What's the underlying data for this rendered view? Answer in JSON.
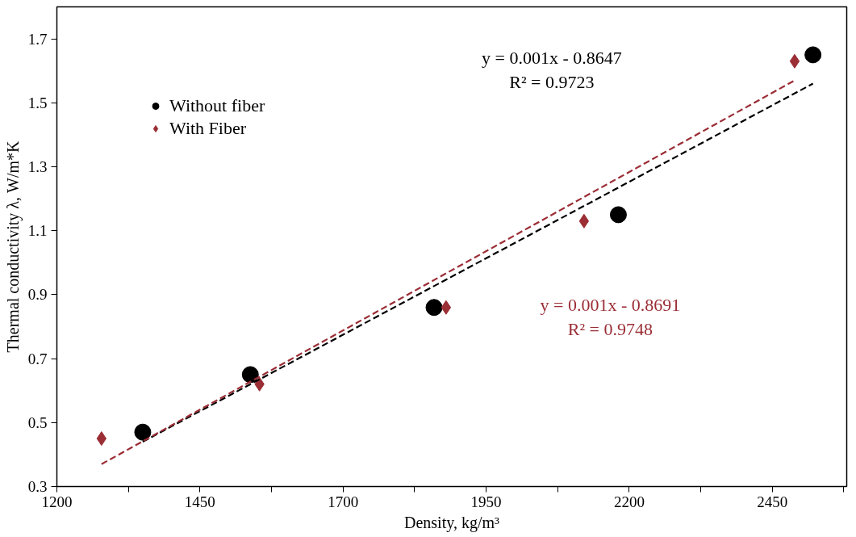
{
  "chart_data": {
    "type": "scatter",
    "xlabel": "Density, kg/m³",
    "ylabel": "Thermal conductivity λ, W/m*K",
    "xlim": [
      1200,
      2580
    ],
    "ylim": [
      0.3,
      1.8
    ],
    "xticks": [
      1200,
      {
        "value": 1325,
        "label": null
      },
      1450,
      {
        "value": 1575,
        "label": null
      },
      1700,
      {
        "value": 1825,
        "label": null
      },
      1950,
      {
        "value": 2075,
        "label": null
      },
      2200,
      {
        "value": 2325,
        "label": null
      },
      2450,
      {
        "value": 2575,
        "label": null
      }
    ],
    "yticks": [
      0.3,
      0.5,
      0.7,
      0.9,
      1.1,
      1.3,
      1.5,
      1.7
    ],
    "grid": false,
    "legend": "top left",
    "series": [
      {
        "name": "Without fiber",
        "color": "#000000",
        "marker": "circle",
        "x": [
          1350,
          1538,
          1859,
          2181,
          2521
        ],
        "values": [
          0.47,
          0.65,
          0.86,
          1.15,
          1.65
        ]
      },
      {
        "name": "With Fiber",
        "color": "#9b2d35",
        "marker": "diamond",
        "x": [
          1278,
          1554,
          1880,
          2121,
          2489
        ],
        "values": [
          0.45,
          0.62,
          0.86,
          1.13,
          1.63
        ]
      },
      {
        "type": "line",
        "color": "#000000",
        "line_style": "dashed",
        "x": [
          1350,
          2521
        ],
        "values": [
          0.44,
          1.56
        ]
      },
      {
        "type": "line",
        "color": "#9b2d35",
        "line_style": "dashed",
        "x": [
          1278,
          2489
        ],
        "values": [
          0.37,
          1.57
        ]
      }
    ],
    "annotations": [
      "y = 0.001x - 0.8647\nR² = 0.9723",
      "y = 0.001x - 0.8691\nR² = 0.9748"
    ]
  }
}
